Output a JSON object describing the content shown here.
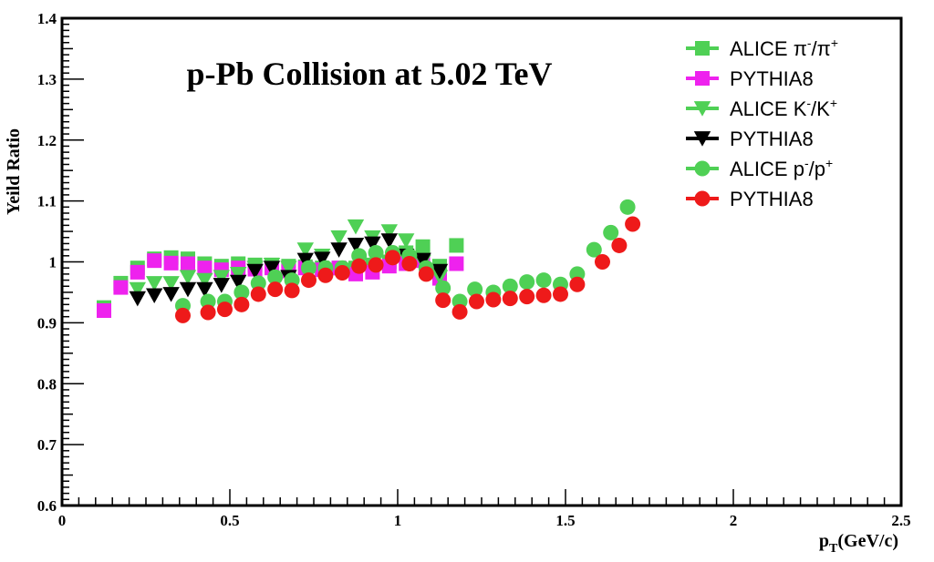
{
  "chart_data": {
    "type": "scatter",
    "title": "p-Pb Collision at 5.02 TeV",
    "xlabel": "p",
    "xlabel_sub": "T",
    "xlabel_unit": "(GeV/c)",
    "ylabel": "Yeild Ratio",
    "xlim": [
      0,
      2.5
    ],
    "ylim": [
      0.6,
      1.4
    ],
    "x_ticks": [
      0,
      0.5,
      1,
      1.5,
      2,
      2.5
    ],
    "x_tick_labels": [
      "0",
      "0.5",
      "1",
      "1.5",
      "2",
      "2.5"
    ],
    "y_ticks": [
      0.6,
      0.7,
      0.8,
      0.9,
      1.0,
      1.1,
      1.2,
      1.3,
      1.4
    ],
    "y_tick_labels": [
      "0.6",
      "0.7",
      "0.8",
      "0.9",
      "1",
      "1.1",
      "1.2",
      "1.3",
      "1.4"
    ],
    "legend_position": "top-right",
    "series": [
      {
        "name": "ALICE π-/π+",
        "label_parts": [
          "ALICE π",
          "-",
          "/π",
          "+"
        ],
        "marker": "square",
        "color": "#4fd055",
        "points": [
          [
            0.125,
            0.925
          ],
          [
            0.175,
            0.965
          ],
          [
            0.225,
            0.99
          ],
          [
            0.275,
            1.005
          ],
          [
            0.325,
            1.007
          ],
          [
            0.375,
            1.005
          ],
          [
            0.425,
            0.997
          ],
          [
            0.475,
            0.993
          ],
          [
            0.525,
            0.997
          ],
          [
            0.575,
            0.995
          ],
          [
            0.625,
            0.995
          ],
          [
            0.675,
            0.993
          ],
          [
            0.725,
            0.992
          ],
          [
            0.775,
            0.99
          ],
          [
            0.825,
            0.99
          ],
          [
            0.875,
            0.99
          ],
          [
            0.925,
            0.995
          ],
          [
            0.975,
            1.0
          ],
          [
            1.025,
            1.015
          ],
          [
            1.075,
            1.025
          ],
          [
            1.125,
            0.993
          ],
          [
            1.175,
            1.027
          ]
        ]
      },
      {
        "name": "PYTHIA8",
        "label_parts": [
          "PYTHIA8",
          "",
          "",
          ""
        ],
        "marker": "square",
        "color": "#ee22ee",
        "points": [
          [
            0.125,
            0.92
          ],
          [
            0.175,
            0.958
          ],
          [
            0.225,
            0.983
          ],
          [
            0.275,
            1.002
          ],
          [
            0.325,
            0.998
          ],
          [
            0.375,
            0.997
          ],
          [
            0.425,
            0.99
          ],
          [
            0.475,
            0.987
          ],
          [
            0.525,
            0.99
          ],
          [
            0.575,
            0.988
          ],
          [
            0.625,
            0.99
          ],
          [
            0.675,
            0.985
          ],
          [
            0.725,
            0.99
          ],
          [
            0.775,
            0.987
          ],
          [
            0.825,
            0.99
          ],
          [
            0.875,
            0.98
          ],
          [
            0.925,
            0.983
          ],
          [
            0.975,
            0.993
          ],
          [
            1.025,
            0.997
          ],
          [
            1.075,
            1.002
          ],
          [
            1.125,
            0.973
          ],
          [
            1.175,
            0.997
          ]
        ]
      },
      {
        "name": "ALICE K-/K+",
        "label_parts": [
          "ALICE K",
          "-",
          "/K",
          "+"
        ],
        "marker": "triangle-down",
        "color": "#4fd055",
        "points": [
          [
            0.225,
            0.955
          ],
          [
            0.275,
            0.965
          ],
          [
            0.325,
            0.965
          ],
          [
            0.375,
            0.975
          ],
          [
            0.425,
            0.97
          ],
          [
            0.475,
            0.975
          ],
          [
            0.525,
            0.98
          ],
          [
            0.575,
            0.99
          ],
          [
            0.625,
            0.995
          ],
          [
            0.675,
            0.99
          ],
          [
            0.725,
            1.02
          ],
          [
            0.775,
            1.01
          ],
          [
            0.825,
            1.04
          ],
          [
            0.875,
            1.058
          ],
          [
            0.925,
            1.04
          ],
          [
            0.975,
            1.05
          ],
          [
            1.025,
            1.035
          ],
          [
            1.075,
            1.0
          ],
          [
            1.125,
            0.975
          ]
        ]
      },
      {
        "name": "PYTHIA8",
        "label_parts": [
          "PYTHIA8",
          "",
          "",
          ""
        ],
        "marker": "triangle-down",
        "color": "#000000",
        "points": [
          [
            0.225,
            0.94
          ],
          [
            0.275,
            0.945
          ],
          [
            0.325,
            0.947
          ],
          [
            0.375,
            0.955
          ],
          [
            0.425,
            0.955
          ],
          [
            0.475,
            0.962
          ],
          [
            0.525,
            0.967
          ],
          [
            0.575,
            0.985
          ],
          [
            0.625,
            0.99
          ],
          [
            0.675,
            0.975
          ],
          [
            0.725,
            1.003
          ],
          [
            0.775,
            1.005
          ],
          [
            0.825,
            1.02
          ],
          [
            0.875,
            1.028
          ],
          [
            0.925,
            1.03
          ],
          [
            0.975,
            1.035
          ],
          [
            1.025,
            1.01
          ],
          [
            1.075,
            1.003
          ],
          [
            1.125,
            0.985
          ]
        ]
      },
      {
        "name": "ALICE p-/p+",
        "label_parts": [
          "ALICE p",
          "-",
          "/p",
          "+"
        ],
        "marker": "circle",
        "color": "#4fd055",
        "points": [
          [
            0.36,
            0.928
          ],
          [
            0.435,
            0.935
          ],
          [
            0.485,
            0.935
          ],
          [
            0.535,
            0.95
          ],
          [
            0.585,
            0.965
          ],
          [
            0.635,
            0.975
          ],
          [
            0.685,
            0.97
          ],
          [
            0.735,
            0.99
          ],
          [
            0.785,
            0.99
          ],
          [
            0.835,
            0.99
          ],
          [
            0.885,
            1.01
          ],
          [
            0.935,
            1.015
          ],
          [
            0.985,
            1.015
          ],
          [
            1.035,
            1.01
          ],
          [
            1.085,
            0.99
          ],
          [
            1.135,
            0.957
          ],
          [
            1.185,
            0.935
          ],
          [
            1.23,
            0.955
          ],
          [
            1.285,
            0.95
          ],
          [
            1.335,
            0.96
          ],
          [
            1.385,
            0.967
          ],
          [
            1.435,
            0.97
          ],
          [
            1.485,
            0.963
          ],
          [
            1.535,
            0.98
          ],
          [
            1.585,
            1.02
          ],
          [
            1.635,
            1.048
          ],
          [
            1.685,
            1.09
          ]
        ]
      },
      {
        "name": "PYTHIA8",
        "label_parts": [
          "PYTHIA8",
          "",
          "",
          ""
        ],
        "marker": "circle",
        "color": "#ee1a1a",
        "points": [
          [
            0.36,
            0.912
          ],
          [
            0.435,
            0.917
          ],
          [
            0.485,
            0.922
          ],
          [
            0.535,
            0.93
          ],
          [
            0.585,
            0.947
          ],
          [
            0.635,
            0.955
          ],
          [
            0.685,
            0.953
          ],
          [
            0.735,
            0.97
          ],
          [
            0.785,
            0.978
          ],
          [
            0.835,
            0.982
          ],
          [
            0.885,
            0.993
          ],
          [
            0.935,
            0.995
          ],
          [
            0.985,
            1.007
          ],
          [
            1.035,
            0.997
          ],
          [
            1.085,
            0.98
          ],
          [
            1.135,
            0.937
          ],
          [
            1.185,
            0.918
          ],
          [
            1.235,
            0.935
          ],
          [
            1.285,
            0.938
          ],
          [
            1.335,
            0.94
          ],
          [
            1.385,
            0.943
          ],
          [
            1.435,
            0.945
          ],
          [
            1.485,
            0.947
          ],
          [
            1.535,
            0.963
          ],
          [
            1.61,
            1.0
          ],
          [
            1.66,
            1.027
          ],
          [
            1.7,
            1.062
          ]
        ]
      }
    ]
  }
}
